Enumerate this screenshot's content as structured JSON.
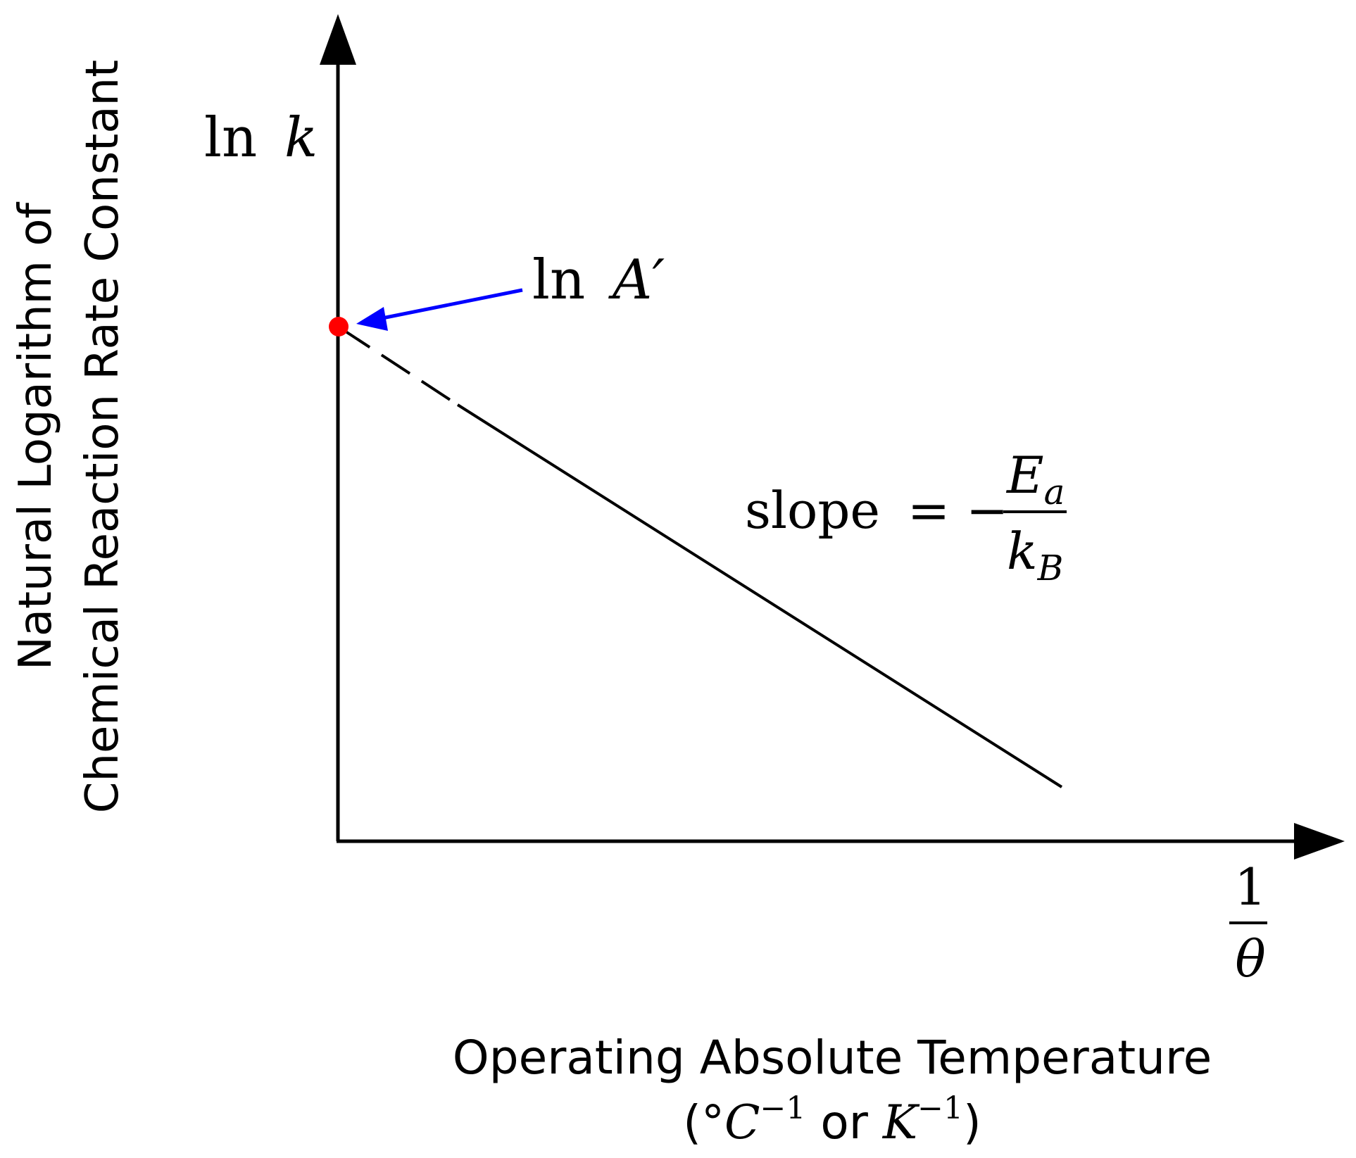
{
  "diagram": {
    "y_axis_symbol_fn": "ln",
    "y_axis_symbol_var": "k",
    "y_axis_title_line1": "Natural Logarithm of",
    "y_axis_title_line2": "Chemical Reaction Rate Constant",
    "x_axis_symbol_num": "1",
    "x_axis_symbol_den": "θ",
    "x_axis_title_line1": "Operating Absolute Temperature",
    "x_axis_units_open": "(°",
    "x_axis_units_c": "C",
    "x_axis_units_exp1": "−1",
    "x_axis_units_or": " or ",
    "x_axis_units_k": "K",
    "x_axis_units_exp2": "−1",
    "x_axis_units_close": ")",
    "intercept_label_fn": "ln",
    "intercept_label_var": "A′",
    "slope_label_word": "slope",
    "slope_label_eq": "= −",
    "slope_num_var": "E",
    "slope_num_sub": "a",
    "slope_den_var": "k",
    "slope_den_sub": "B"
  },
  "colors": {
    "intercept_point": "#ff0000",
    "intercept_arrow": "#0000ff",
    "line": "#000000"
  }
}
